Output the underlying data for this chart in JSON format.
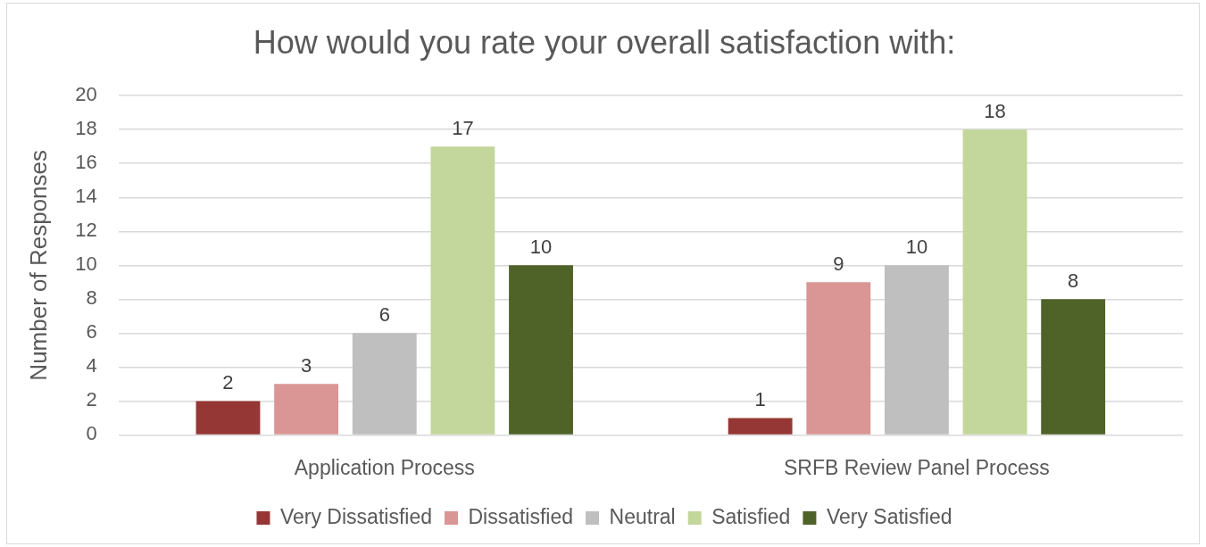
{
  "chart_data": {
    "type": "bar",
    "title": "How would you rate your overall satisfaction with:",
    "ylabel": "Number of Responses",
    "categories": [
      "Application Process",
      "SRFB Review Panel Process"
    ],
    "series": [
      {
        "name": "Very Dissatisfied",
        "color": "#953735",
        "values": [
          2,
          1
        ]
      },
      {
        "name": "Dissatisfied",
        "color": "#d99694",
        "values": [
          3,
          9
        ]
      },
      {
        "name": "Neutral",
        "color": "#bfbfbf",
        "values": [
          6,
          10
        ]
      },
      {
        "name": "Satisfied",
        "color": "#c3d69b",
        "values": [
          17,
          18
        ]
      },
      {
        "name": "Very Satisfied",
        "color": "#4f6228",
        "values": [
          10,
          8
        ]
      }
    ],
    "ylim": [
      0,
      20
    ],
    "yticks": [
      0,
      2,
      4,
      6,
      8,
      10,
      12,
      14,
      16,
      18,
      20
    ],
    "grid": "y",
    "legend": "bottom",
    "data_labels": true
  }
}
